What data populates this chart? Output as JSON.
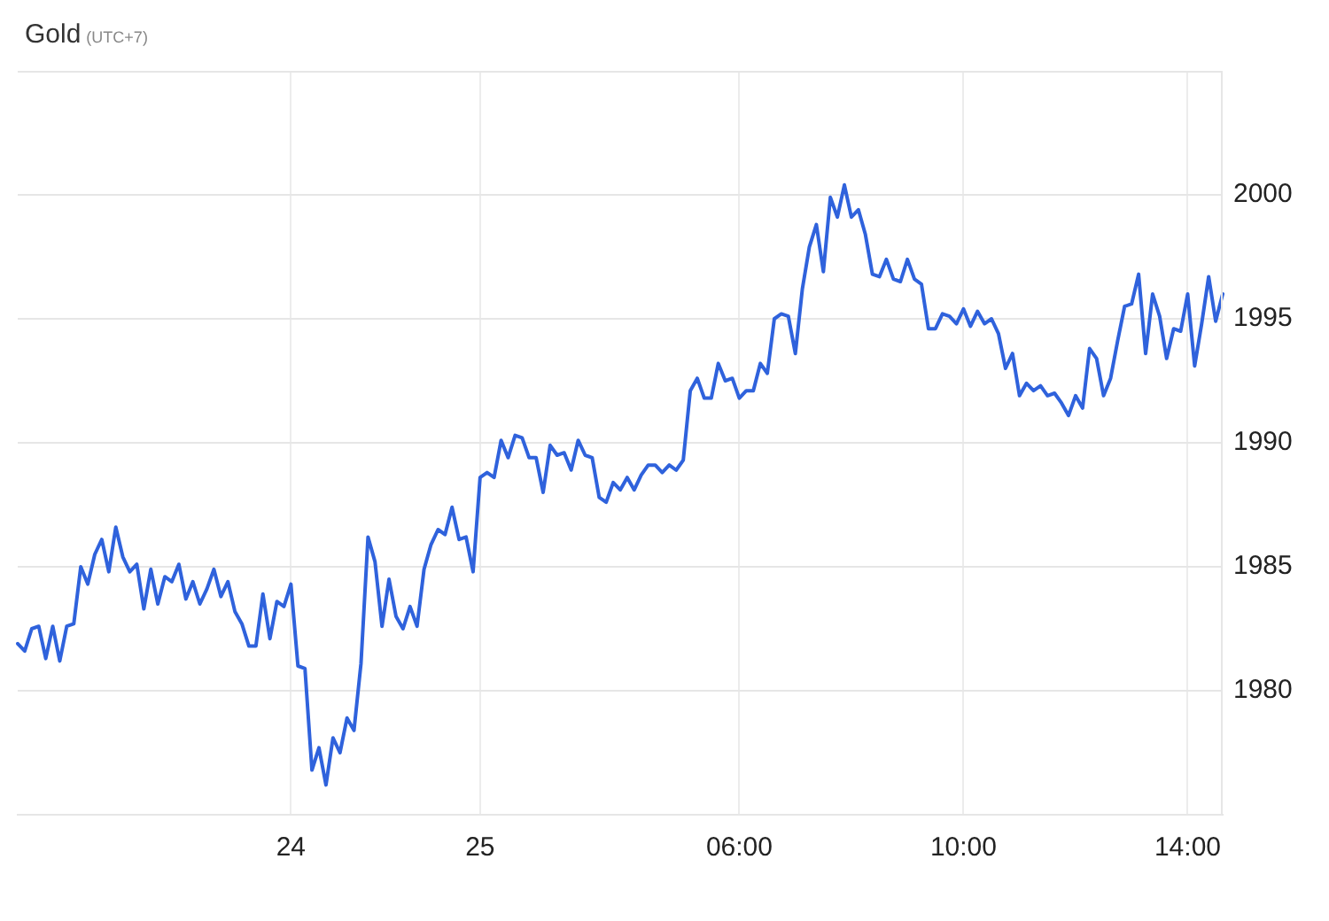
{
  "chart_data": {
    "type": "line",
    "title": "Gold",
    "subtitle": "(UTC+7)",
    "categories": [
      null,
      null,
      null,
      null,
      null,
      null,
      null,
      null,
      null,
      null,
      null,
      null,
      null,
      null,
      null,
      null,
      null,
      null,
      null,
      null,
      null,
      null,
      null,
      null,
      null,
      null,
      null,
      null,
      null,
      null,
      null,
      null,
      null,
      null,
      null,
      null,
      null,
      null,
      null,
      "24",
      null,
      null,
      null,
      null,
      null,
      null,
      null,
      null,
      null,
      null,
      null,
      null,
      null,
      null,
      null,
      null,
      null,
      null,
      null,
      null,
      null,
      null,
      null,
      null,
      null,
      null,
      "25",
      null,
      null,
      null,
      null,
      null,
      null,
      null,
      null,
      null,
      null,
      null,
      null,
      null,
      null,
      null,
      null,
      null,
      null,
      null,
      null,
      null,
      null,
      null,
      null,
      null,
      null,
      null,
      null,
      null,
      null,
      null,
      null,
      null,
      null,
      null,
      null,
      "06:00",
      null,
      null,
      null,
      null,
      null,
      null,
      null,
      null,
      null,
      null,
      null,
      null,
      null,
      null,
      null,
      null,
      null,
      null,
      null,
      null,
      null,
      null,
      null,
      null,
      null,
      null,
      null,
      null,
      null,
      null,
      null,
      "10:00",
      null,
      null,
      null,
      null,
      null,
      null,
      null,
      null,
      null,
      null,
      null,
      null,
      null,
      null,
      null,
      null,
      null,
      null,
      null,
      null,
      null,
      null,
      null,
      null,
      null,
      null,
      null,
      null,
      null,
      null,
      null,
      "14:00",
      null,
      null,
      null,
      null,
      null
    ],
    "series": [
      {
        "color": "#2f62dc",
        "values": [
          1981.9,
          1981.6,
          1982.5,
          1982.6,
          1981.3,
          1982.6,
          1981.2,
          1982.6,
          1982.7,
          1985,
          1984.3,
          1985.5,
          1986.1,
          1984.8,
          1986.6,
          1985.4,
          1984.8,
          1985.1,
          1983.3,
          1984.9,
          1983.5,
          1984.6,
          1984.4,
          1985.1,
          1983.7,
          1984.4,
          1983.5,
          1984.1,
          1984.9,
          1983.8,
          1984.4,
          1983.2,
          1982.7,
          1981.8,
          1981.8,
          1983.9,
          1982.1,
          1983.6,
          1983.4,
          1984.3,
          1981,
          1980.9,
          1976.8,
          1977.7,
          1976.2,
          1978.1,
          1977.5,
          1978.9,
          1978.4,
          1981.1,
          1986.2,
          1985.2,
          1982.6,
          1984.5,
          1983,
          1982.5,
          1983.4,
          1982.6,
          1984.9,
          1985.9,
          1986.5,
          1986.3,
          1987.4,
          1986.1,
          1986.2,
          1984.8,
          1988.6,
          1988.8,
          1988.6,
          1990.1,
          1989.4,
          1990.3,
          1990.2,
          1989.4,
          1989.4,
          1988,
          1989.9,
          1989.5,
          1989.6,
          1988.9,
          1990.1,
          1989.5,
          1989.4,
          1987.8,
          1987.6,
          1988.4,
          1988.1,
          1988.6,
          1988.1,
          1988.7,
          1989.1,
          1989.1,
          1988.8,
          1989.1,
          1988.9,
          1989.3,
          1992.1,
          1992.6,
          1991.8,
          1991.8,
          1993.2,
          1992.5,
          1992.6,
          1991.8,
          1992.1,
          1992.1,
          1993.2,
          1992.8,
          1995,
          1995.2,
          1995.1,
          1993.6,
          1996.2,
          1997.9,
          1998.8,
          1996.9,
          1999.9,
          1999.1,
          2000.4,
          1999.1,
          1999.4,
          1998.4,
          1996.8,
          1996.7,
          1997.4,
          1996.6,
          1996.5,
          1997.4,
          1996.6,
          1996.4,
          1994.6,
          1994.6,
          1995.2,
          1995.1,
          1994.8,
          1995.4,
          1994.7,
          1995.3,
          1994.8,
          1995,
          1994.4,
          1993,
          1993.6,
          1991.9,
          1992.4,
          1992.1,
          1992.3,
          1991.9,
          1992,
          1991.6,
          1991.1,
          1991.9,
          1991.4,
          1993.8,
          1993.4,
          1991.9,
          1992.6,
          1994.1,
          1995.5,
          1995.6,
          1996.8,
          1993.6,
          1996,
          1995.1,
          1993.4,
          1994.6,
          1994.5,
          1996,
          1993.1,
          1994.8,
          1996.7,
          1994.9,
          1996
        ]
      }
    ],
    "ylim": [
      1975,
      2005
    ],
    "yticks": [
      1980,
      1985,
      1990,
      1995,
      2000
    ],
    "grid": true,
    "legend": false,
    "marker": "none",
    "line_style": "solid"
  }
}
